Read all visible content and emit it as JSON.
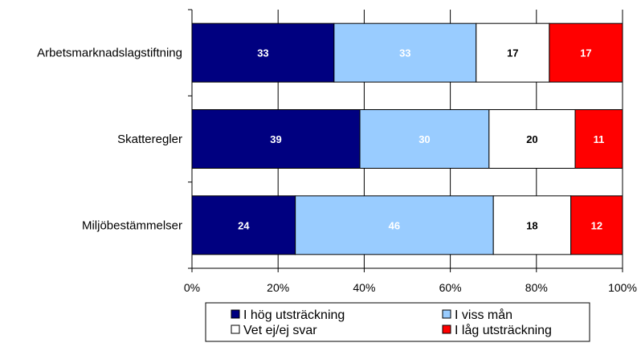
{
  "chart_data": {
    "type": "bar",
    "orientation": "horizontal",
    "stacked": true,
    "normalized_percent": true,
    "categories": [
      "Arbetsmarknadslagstiftning",
      "Skatteregler",
      "Miljöbestämmelser"
    ],
    "series": [
      {
        "name": "I hög utsträckning",
        "values": [
          33,
          39,
          24
        ],
        "color": "#000080",
        "label_color": "#ffffff"
      },
      {
        "name": "I viss mån",
        "values": [
          33,
          30,
          46
        ],
        "color": "#99ccff",
        "label_color": "#ffffff"
      },
      {
        "name": "Vet ej/ej svar",
        "values": [
          17,
          20,
          18
        ],
        "color": "#ffffff",
        "label_color": "#000000"
      },
      {
        "name": "I låg utsträckning",
        "values": [
          17,
          11,
          12
        ],
        "color": "#ff0000",
        "label_color": "#ffffff"
      }
    ],
    "xlim": [
      0,
      100
    ],
    "x_ticks": [
      "0%",
      "20%",
      "40%",
      "60%",
      "80%",
      "100%"
    ],
    "grid": true,
    "legend_position": "bottom"
  }
}
